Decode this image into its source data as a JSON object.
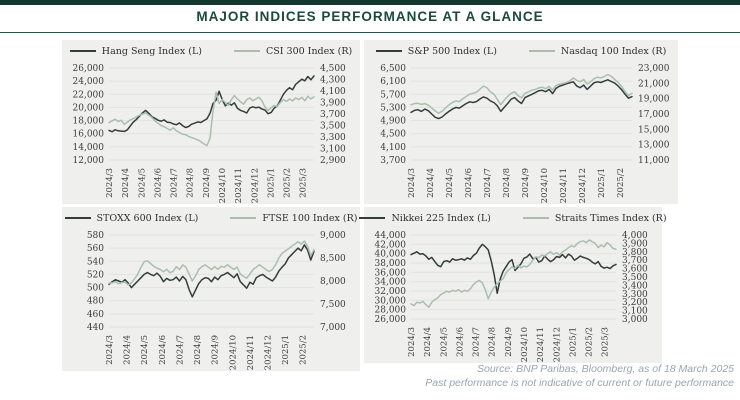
{
  "header": {
    "title": "MAJOR INDICES PERFORMANCE AT A GLANCE"
  },
  "footer": {
    "line1": "Source: BNP Paribas, Bloomberg, as of 18 March 2025",
    "line2": "Past performance is not indicative of current or future performance"
  },
  "colors": {
    "dark_series": "#333d3a",
    "light_series": "#a9bfad",
    "panel_bg": "#efefee",
    "grid": "#e2e2e1",
    "accent_green": "#1b4a3d",
    "axis_text": "#3c3c3c",
    "footer_text": "#98a6af"
  },
  "chart_data": [
    {
      "type": "line",
      "name": "hang-seng-vs-csi-300",
      "left_axis": {
        "min": 12000,
        "max": 26000,
        "ticks": [
          "26,000",
          "24,000",
          "22,000",
          "20,000",
          "18,000",
          "16,000",
          "14,000",
          "12,000"
        ]
      },
      "right_axis": {
        "min": 2900,
        "max": 4500,
        "ticks": [
          "4,500",
          "4,300",
          "4,100",
          "3,900",
          "3,700",
          "3,500",
          "3,300",
          "3,100",
          "2,900"
        ]
      },
      "x_labels": [
        "2024/3",
        "2024/4",
        "2024/5",
        "2024/6",
        "2024/7",
        "2024/8",
        "2024/9",
        "2024/10",
        "2024/11",
        "2024/12",
        "2025/1",
        "2025/2",
        "2025/3"
      ],
      "series": [
        {
          "name": "Hang Seng Index (L)",
          "axis": "left",
          "color_key": "dark_series",
          "values": [
            16500,
            16300,
            16600,
            16450,
            16400,
            16350,
            16600,
            17200,
            17800,
            18200,
            18700,
            19200,
            19550,
            19100,
            18600,
            18350,
            18050,
            17900,
            18100,
            17750,
            17700,
            17500,
            17350,
            17650,
            17250,
            16950,
            17100,
            17450,
            17600,
            17800,
            17700,
            18000,
            18250,
            19100,
            20600,
            21100,
            22450,
            21200,
            20250,
            20650,
            20350,
            20700,
            19850,
            19550,
            19400,
            19150,
            19900,
            20100,
            19950,
            20050,
            19750,
            19600,
            19050,
            19250,
            19900,
            20250,
            21100,
            22000,
            22600,
            23000,
            22700,
            23500,
            23900,
            24300,
            24050,
            24700,
            24200,
            24800
          ]
        },
        {
          "name": "CSI 300 Index (R)",
          "axis": "right",
          "color_key": "light_series",
          "values": [
            3550,
            3580,
            3610,
            3570,
            3590,
            3520,
            3560,
            3600,
            3620,
            3650,
            3680,
            3700,
            3720,
            3680,
            3640,
            3580,
            3540,
            3500,
            3480,
            3450,
            3420,
            3460,
            3410,
            3380,
            3350,
            3340,
            3310,
            3290,
            3270,
            3250,
            3220,
            3180,
            3150,
            3280,
            3750,
            4080,
            3880,
            3950,
            3900,
            3850,
            3950,
            4020,
            3960,
            3910,
            3870,
            3950,
            3980,
            3930,
            3960,
            3990,
            3930,
            3820,
            3760,
            3810,
            3850,
            3830,
            3900,
            3950,
            3920,
            3960,
            3930,
            3980,
            3950,
            3990,
            3930,
            4010,
            3960,
            4000
          ]
        }
      ]
    },
    {
      "type": "line",
      "name": "sp500-vs-nasdaq100",
      "left_axis": {
        "min": 3700,
        "max": 6500,
        "ticks": [
          "6,500",
          "6,100",
          "5,700",
          "5,300",
          "4,900",
          "4,500",
          "4,100",
          "3,700"
        ]
      },
      "right_axis": {
        "min": 11000,
        "max": 23000,
        "ticks": [
          "23,000",
          "21,000",
          "19,000",
          "17,000",
          "15,000",
          "13,000",
          "11,000"
        ]
      },
      "x_labels": [
        "2024/3",
        "2024/4",
        "2024/5",
        "2024/6",
        "2024/7",
        "2024/8",
        "2024/9",
        "2024/10",
        "2024/11",
        "2024/12",
        "2025/1",
        "2025/2"
      ],
      "series": [
        {
          "name": "S&P 500 Index (L)",
          "axis": "left",
          "color_key": "dark_series",
          "values": [
            5150,
            5210,
            5230,
            5180,
            5250,
            5200,
            5100,
            5000,
            4960,
            5010,
            5100,
            5180,
            5250,
            5300,
            5280,
            5350,
            5420,
            5470,
            5450,
            5480,
            5560,
            5620,
            5580,
            5500,
            5450,
            5350,
            5180,
            5300,
            5420,
            5550,
            5600,
            5500,
            5420,
            5600,
            5650,
            5700,
            5750,
            5810,
            5820,
            5780,
            5850,
            5720,
            5880,
            5950,
            5980,
            6020,
            6050,
            6080,
            5950,
            5900,
            5980,
            5850,
            5950,
            6050,
            6080,
            6060,
            6100,
            6140,
            6090,
            6040,
            5950,
            5840,
            5700,
            5580,
            5630
          ]
        },
        {
          "name": "Nasdaq 100 Index (R)",
          "axis": "right",
          "color_key": "light_series",
          "values": [
            18200,
            18350,
            18400,
            18250,
            18350,
            18150,
            17800,
            17400,
            17100,
            17350,
            17800,
            18200,
            18500,
            18700,
            18600,
            19000,
            19300,
            19600,
            19700,
            19850,
            20250,
            20650,
            20400,
            19900,
            19600,
            18900,
            18200,
            18800,
            19300,
            19700,
            19900,
            19400,
            19100,
            19700,
            19900,
            20100,
            20200,
            20400,
            20500,
            20300,
            20600,
            20150,
            20700,
            20900,
            21000,
            21100,
            21300,
            21700,
            21400,
            21200,
            21500,
            20900,
            21200,
            21600,
            21800,
            21700,
            21900,
            22150,
            21900,
            21500,
            21100,
            20600,
            19900,
            19400,
            19700
          ]
        }
      ]
    },
    {
      "type": "line",
      "name": "stoxx600-vs-ftse100",
      "left_axis": {
        "min": 440,
        "max": 580,
        "ticks": [
          "580",
          "560",
          "540",
          "520",
          "500",
          "480",
          "460",
          "440"
        ]
      },
      "right_axis": {
        "min": 7000,
        "max": 9000,
        "ticks": [
          "9,000",
          "8,500",
          "8,000",
          "7,500",
          "7,000"
        ]
      },
      "x_labels": [
        "2024/3",
        "2024/4",
        "2024/5",
        "2024/6",
        "2024/7",
        "2024/8",
        "2024/9",
        "2024/10",
        "2024/11",
        "2024/12",
        "2025/1",
        "2025/2"
      ],
      "series": [
        {
          "name": "STOXX 600 Index (L)",
          "axis": "left",
          "color_key": "dark_series",
          "values": [
            505,
            509,
            512,
            510,
            508,
            512,
            507,
            500,
            505,
            510,
            515,
            520,
            523,
            520,
            518,
            522,
            517,
            509,
            514,
            511,
            512,
            516,
            510,
            517,
            512,
            497,
            486,
            496,
            506,
            512,
            515,
            514,
            509,
            516,
            512,
            518,
            520,
            523,
            519,
            515,
            521,
            509,
            504,
            499,
            508,
            505,
            515,
            518,
            520,
            516,
            513,
            510,
            516,
            525,
            531,
            536,
            545,
            550,
            555,
            560,
            556,
            565,
            557,
            542,
            555
          ]
        },
        {
          "name": "FTSE 100 Index (R)",
          "axis": "right",
          "color_key": "light_series",
          "values": [
            7950,
            7960,
            7985,
            7940,
            7965,
            7980,
            7915,
            7960,
            8050,
            8150,
            8300,
            8420,
            8440,
            8380,
            8320,
            8280,
            8250,
            8200,
            8255,
            8180,
            8210,
            8310,
            8250,
            8350,
            8300,
            8150,
            8000,
            8110,
            8250,
            8310,
            8350,
            8300,
            8250,
            8310,
            8255,
            8320,
            8300,
            8355,
            8300,
            8250,
            8305,
            8150,
            8100,
            8060,
            8155,
            8250,
            8300,
            8355,
            8300,
            8250,
            8205,
            8250,
            8355,
            8500,
            8600,
            8650,
            8700,
            8755,
            8800,
            8855,
            8800,
            8870,
            8750,
            8550,
            8680
          ]
        }
      ]
    },
    {
      "type": "line",
      "name": "nikkei225-vs-straits-times",
      "left_axis": {
        "min": 26000,
        "max": 44000,
        "ticks": [
          "44,000",
          "42,000",
          "40,000",
          "38,000",
          "36,000",
          "34,000",
          "32,000",
          "30,000",
          "28,000",
          "26,000"
        ]
      },
      "right_axis": {
        "min": 3000,
        "max": 4000,
        "ticks": [
          "4,000",
          "3,900",
          "3,800",
          "3,700",
          "3,600",
          "3,500",
          "3,400",
          "3,300",
          "3,200",
          "3,100",
          "3,000"
        ]
      },
      "x_labels": [
        "2024/3",
        "2024/4",
        "2024/5",
        "2024/6",
        "2024/7",
        "2024/8",
        "2024/9",
        "2024/10",
        "2024/11",
        "2024/12",
        "2025/1",
        "2025/2",
        "2025/3"
      ],
      "series": [
        {
          "name": "Nikkei 225 Index (L)",
          "axis": "left",
          "color_key": "dark_series",
          "values": [
            39800,
            40100,
            40400,
            39900,
            40000,
            39500,
            38800,
            39200,
            38300,
            37500,
            37200,
            38300,
            38500,
            38200,
            38900,
            38600,
            38700,
            38900,
            38600,
            39100,
            38800,
            39600,
            40100,
            41200,
            42000,
            41500,
            40800,
            38500,
            35500,
            31500,
            34500,
            36200,
            37200,
            38200,
            38700,
            36400,
            37100,
            37800,
            39000,
            39300,
            39900,
            38900,
            39200,
            38200,
            38500,
            39500,
            38800,
            38300,
            38700,
            39400,
            39200,
            39800,
            39100,
            39900,
            39500,
            38600,
            39000,
            39500,
            39200,
            39000,
            38700,
            38200,
            37800,
            38300,
            37300,
            36900,
            37100,
            36800,
            37400,
            37700
          ]
        },
        {
          "name": "Straits Times Index (R)",
          "axis": "right",
          "color_key": "light_series",
          "values": [
            3180,
            3160,
            3200,
            3190,
            3210,
            3170,
            3140,
            3200,
            3230,
            3250,
            3290,
            3310,
            3330,
            3320,
            3340,
            3330,
            3350,
            3320,
            3340,
            3330,
            3360,
            3410,
            3440,
            3460,
            3430,
            3350,
            3240,
            3320,
            3380,
            3420,
            3450,
            3480,
            3550,
            3590,
            3620,
            3600,
            3640,
            3610,
            3630,
            3620,
            3650,
            3700,
            3740,
            3730,
            3760,
            3750,
            3780,
            3800,
            3770,
            3790,
            3760,
            3800,
            3820,
            3850,
            3870,
            3860,
            3900,
            3920,
            3930,
            3910,
            3940,
            3920,
            3900,
            3850,
            3880,
            3860,
            3910,
            3880,
            3840,
            3830
          ]
        }
      ]
    }
  ]
}
